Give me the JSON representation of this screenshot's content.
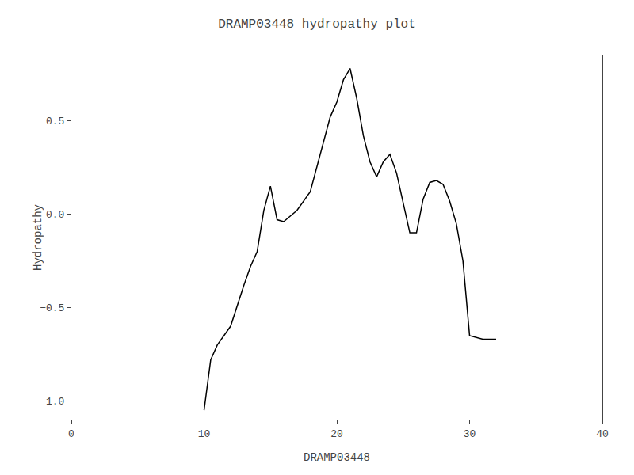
{
  "chart_data": {
    "type": "line",
    "title": "DRAMP03448 hydropathy plot",
    "xlabel": "DRAMP03448",
    "ylabel": "Hydropathy",
    "x": [
      10.0,
      10.5,
      11.0,
      12.0,
      13.0,
      13.5,
      14.0,
      14.5,
      15.0,
      15.5,
      16.0,
      17.0,
      18.0,
      18.5,
      19.0,
      19.5,
      20.0,
      20.5,
      21.0,
      21.5,
      22.0,
      22.5,
      23.0,
      23.5,
      24.0,
      24.5,
      25.0,
      25.5,
      26.0,
      26.5,
      27.0,
      27.5,
      28.0,
      28.5,
      29.0,
      29.5,
      30.0,
      31.0,
      32.0
    ],
    "values": [
      -1.05,
      -0.78,
      -0.7,
      -0.6,
      -0.38,
      -0.28,
      -0.2,
      0.02,
      0.15,
      -0.03,
      -0.04,
      0.02,
      0.12,
      0.25,
      0.38,
      0.52,
      0.6,
      0.72,
      0.78,
      0.62,
      0.42,
      0.28,
      0.2,
      0.28,
      0.32,
      0.22,
      0.06,
      -0.1,
      -0.1,
      0.08,
      0.17,
      0.18,
      0.16,
      0.07,
      -0.05,
      -0.25,
      -0.65,
      -0.67,
      -0.67
    ],
    "color": "black",
    "xlim": [
      0,
      40
    ],
    "ylim": [
      -1.1,
      0.85
    ],
    "xticks": [
      0,
      10,
      20,
      30,
      40
    ],
    "yticks": [
      {
        "value": -1.0,
        "label": "−1.0"
      },
      {
        "value": -0.5,
        "label": "−0.5"
      },
      {
        "value": 0.0,
        "label": "0.0"
      },
      {
        "value": 0.5,
        "label": "0.5"
      }
    ],
    "grid": false
  }
}
